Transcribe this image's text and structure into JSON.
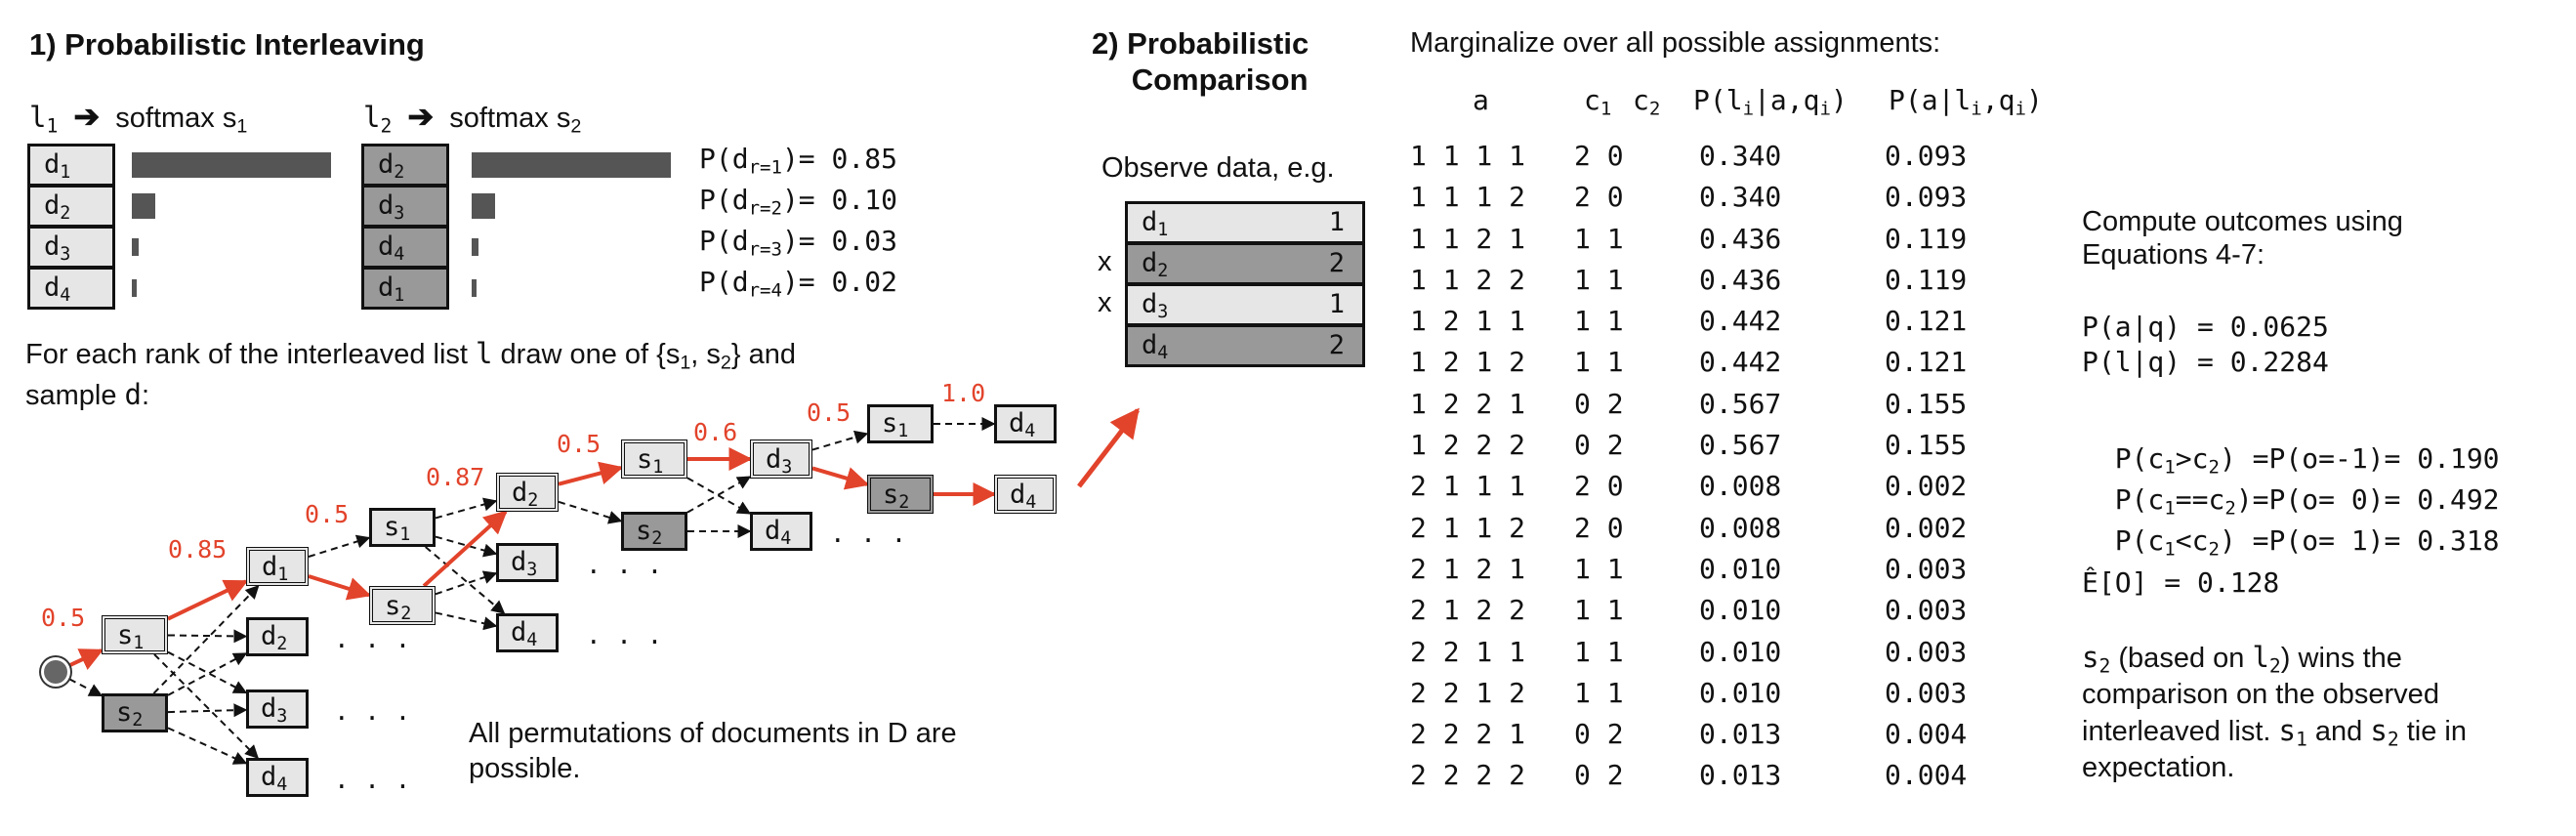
{
  "section1": {
    "title": "1) Probabilistic Interleaving",
    "list1_label": "l",
    "list1_sub": "1",
    "list2_label": "l",
    "list2_sub": "2",
    "softmax_label": "softmax s",
    "softmax1_sub": "1",
    "softmax2_sub": "2",
    "list1_docs": [
      {
        "t": "d",
        "s": "1"
      },
      {
        "t": "d",
        "s": "2"
      },
      {
        "t": "d",
        "s": "3"
      },
      {
        "t": "d",
        "s": "4"
      }
    ],
    "list2_docs": [
      {
        "t": "d",
        "s": "2"
      },
      {
        "t": "d",
        "s": "3"
      },
      {
        "t": "d",
        "s": "4"
      },
      {
        "t": "d",
        "s": "1"
      }
    ],
    "rank_probs": [
      {
        "pre": "P(d",
        "sub": "r=1",
        "post": ")= 0.85",
        "value": 0.85
      },
      {
        "pre": "P(d",
        "sub": "r=2",
        "post": ")= 0.10",
        "value": 0.1
      },
      {
        "pre": "P(d",
        "sub": "r=3",
        "post": ")= 0.03",
        "value": 0.03
      },
      {
        "pre": "P(d",
        "sub": "r=4",
        "post": ")= 0.02",
        "value": 0.02
      }
    ],
    "instruction_line1_a": "For each rank of the interleaved list ",
    "instruction_line1_b": "l",
    "instruction_line1_c": " draw one of {s",
    "instruction_line1_d": "1",
    "instruction_line1_e": ", s",
    "instruction_line1_f": "2",
    "instruction_line1_g": "} and",
    "instruction_line2_a": "sample ",
    "instruction_line2_b": "d",
    "instruction_line2_c": ":",
    "tree_probs": {
      "p1": "0.5",
      "p2": "0.85",
      "p3": "0.5",
      "p4": "0.87",
      "p5": "0.5",
      "p6": "0.6",
      "p7": "0.5",
      "p8": "1.0"
    },
    "ellipsis": ". . .",
    "permutations_note_1": "All permutations of documents in D are",
    "permutations_note_2": "possible."
  },
  "section2": {
    "title_line1": "2) Probabilistic",
    "title_line2": "Comparison",
    "observe_label": "Observe data, e.g.",
    "observed": [
      {
        "mark": "",
        "t": "d",
        "s": "1",
        "num": "1",
        "shade": "light"
      },
      {
        "mark": "x",
        "t": "d",
        "s": "2",
        "num": "2",
        "shade": "dark"
      },
      {
        "mark": "x",
        "t": "d",
        "s": "3",
        "num": "1",
        "shade": "light"
      },
      {
        "mark": "",
        "t": "d",
        "s": "4",
        "num": "2",
        "shade": "dark"
      }
    ]
  },
  "section3": {
    "title": "Marginalize over all possible assignments:",
    "headers": {
      "a": "a",
      "c1": "c",
      "c1_sub": "1",
      "c2": "c",
      "c2_sub": "2",
      "pl_pre": "P(l",
      "pl_sub1": "i",
      "pl_mid": "|a,q",
      "pl_sub2": "i",
      "pl_post": ")",
      "pa_pre": "P(a|l",
      "pa_sub1": "i",
      "pa_mid": ",q",
      "pa_sub2": "i",
      "pa_post": ")"
    },
    "rows": [
      [
        "1 1 1 1",
        "2 0",
        "0.340",
        "0.093"
      ],
      [
        "1 1 1 2",
        "2 0",
        "0.340",
        "0.093"
      ],
      [
        "1 1 2 1",
        "1 1",
        "0.436",
        "0.119"
      ],
      [
        "1 1 2 2",
        "1 1",
        "0.436",
        "0.119"
      ],
      [
        "1 2 1 1",
        "1 1",
        "0.442",
        "0.121"
      ],
      [
        "1 2 1 2",
        "1 1",
        "0.442",
        "0.121"
      ],
      [
        "1 2 2 1",
        "0 2",
        "0.567",
        "0.155"
      ],
      [
        "1 2 2 2",
        "0 2",
        "0.567",
        "0.155"
      ],
      [
        "2 1 1 1",
        "2 0",
        "0.008",
        "0.002"
      ],
      [
        "2 1 1 2",
        "2 0",
        "0.008",
        "0.002"
      ],
      [
        "2 1 2 1",
        "1 1",
        "0.010",
        "0.003"
      ],
      [
        "2 1 2 2",
        "1 1",
        "0.010",
        "0.003"
      ],
      [
        "2 2 1 1",
        "1 1",
        "0.010",
        "0.003"
      ],
      [
        "2 2 1 2",
        "1 1",
        "0.010",
        "0.003"
      ],
      [
        "2 2 2 1",
        "0 2",
        "0.013",
        "0.004"
      ],
      [
        "2 2 2 2",
        "0 2",
        "0.013",
        "0.004"
      ]
    ]
  },
  "section4": {
    "compute_line1": "Compute outcomes using",
    "compute_line2": "Equations 4-7:",
    "paq": "P(a|q) = 0.0625",
    "plq": "P(l|q) = 0.2284",
    "c_gt_pre": "P(c",
    "c_gt_mid": ">c",
    "c_gt_post": ") =P(o=-1)= 0.190",
    "c_eq_pre": "P(c",
    "c_eq_mid": "==c",
    "c_eq_post": ")=P(o= 0)= 0.492",
    "c_lt_pre": "P(c",
    "c_lt_mid": "<c",
    "c_lt_post": ") =P(o= 1)= 0.318",
    "sub1": "1",
    "sub2": "2",
    "expect": "Ê[O] = 0.128",
    "concl_l1_a": "s",
    "concl_l1_b": "2",
    "concl_l1_c": " (based on ",
    "concl_l1_d": "l",
    "concl_l1_e": "2",
    "concl_l1_f": ") wins the",
    "concl_l2": "comparison on the observed",
    "concl_l3_a": "interleaved list. ",
    "concl_l3_b": "s",
    "concl_l3_c": "1",
    "concl_l3_d": " and ",
    "concl_l3_e": "s",
    "concl_l3_f": "2",
    "concl_l3_g": " tie in",
    "concl_l4": "expectation."
  },
  "colors": {
    "accent_red": "#e2432b",
    "dark_cell": "#999999",
    "light_cell": "#e6e6e6",
    "bar": "#555555"
  }
}
